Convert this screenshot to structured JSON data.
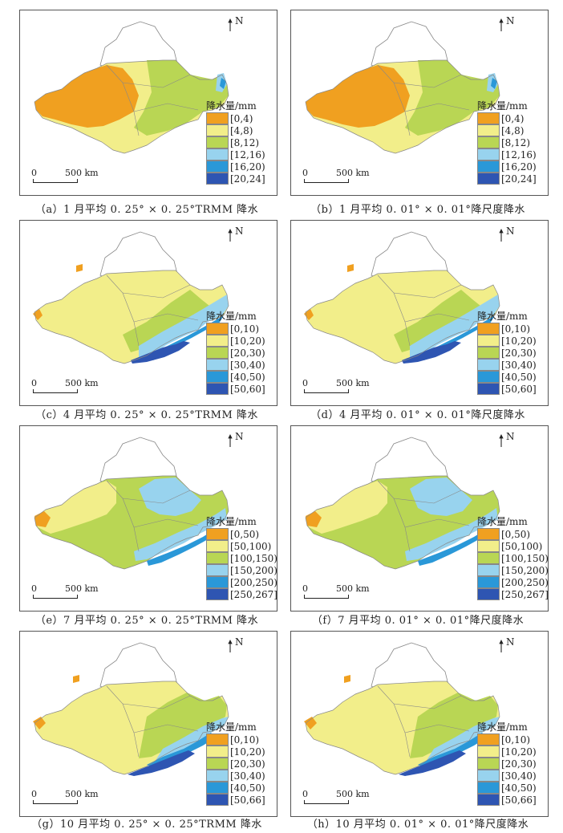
{
  "colors": {
    "c1": "#f0a020",
    "c2": "#f2ee8a",
    "c3": "#b9d654",
    "c4": "#98d3ee",
    "c5": "#2a98d8",
    "c6": "#2e55b2",
    "outline": "#d8d8d8",
    "border": "#888888"
  },
  "north_label": "N",
  "legend_title": "降水量/mm",
  "scale_zero": "0",
  "scale_distance": "500 km",
  "panels": [
    {
      "caption": "（a）1 月平均 0. 25° × 0. 25°TRMM 降水",
      "legend": [
        "[0,4)",
        "[4,8)",
        "[8,12)",
        "[12,16)",
        "[16,20)",
        "[20,24]"
      ]
    },
    {
      "caption": "（b）1 月平均 0. 01° × 0. 01°降尺度降水",
      "legend": [
        "[0,4)",
        "[4,8)",
        "[8,12)",
        "[12,16)",
        "[16,20)",
        "[20,24]"
      ]
    },
    {
      "caption": "（c）4 月平均 0. 25° × 0. 25°TRMM 降水",
      "legend": [
        "[0,10)",
        "[10,20)",
        "[20,30)",
        "[30,40)",
        "[40,50)",
        "[50,60]"
      ]
    },
    {
      "caption": "（d）4 月平均 0. 01° × 0. 01°降尺度降水",
      "legend": [
        "[0,10)",
        "[10,20)",
        "[20,30)",
        "[30,40)",
        "[40,50)",
        "[50,60]"
      ]
    },
    {
      "caption": "（e）7 月平均 0. 25° × 0. 25°TRMM 降水",
      "legend": [
        "[0,50)",
        "[50,100)",
        "[100,150)",
        "[150,200)",
        "[200,250)",
        "[250,267]"
      ]
    },
    {
      "caption": "（f）7 月平均 0. 01° × 0. 01°降尺度降水",
      "legend": [
        "[0,50)",
        "[50,100)",
        "[100,150)",
        "[150,200)",
        "[200,250)",
        "[250,267]"
      ]
    },
    {
      "caption": "（g）10 月平均 0. 25° × 0. 25°TRMM 降水",
      "legend": [
        "[0,10)",
        "[10,20)",
        "[20,30)",
        "[30,40)",
        "[40,50)",
        "[50,66]"
      ]
    },
    {
      "caption": "（h）10 月平均 0. 01° × 0. 01°降尺度降水",
      "legend": [
        "[0,10)",
        "[10,20)",
        "[20,30)",
        "[30,40)",
        "[40,50)",
        "[50,66]"
      ]
    }
  ]
}
